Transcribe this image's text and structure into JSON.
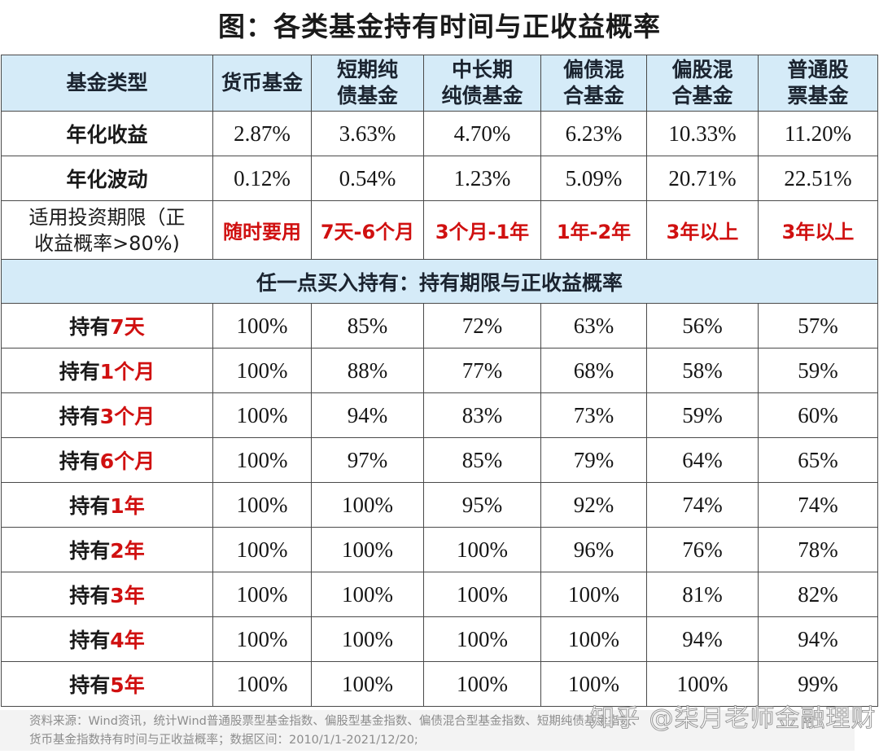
{
  "title": "图：各类基金持有时间与正收益概率",
  "header": {
    "first_col": "基金类型",
    "columns": [
      {
        "line1": "货币基金",
        "line2": ""
      },
      {
        "line1": "短期纯",
        "line2": "债基金"
      },
      {
        "line1": "中长期",
        "line2": "纯债基金"
      },
      {
        "line1": "偏债混",
        "line2": "合基金"
      },
      {
        "line1": "偏股混",
        "line2": "合基金"
      },
      {
        "line1": "普通股",
        "line2": "票基金"
      }
    ]
  },
  "metrics": [
    {
      "label": "年化收益",
      "values": [
        "2.87%",
        "3.63%",
        "4.70%",
        "6.23%",
        "10.33%",
        "11.20%"
      ]
    },
    {
      "label": "年化波动",
      "values": [
        "0.12%",
        "0.54%",
        "1.23%",
        "5.09%",
        "20.71%",
        "22.51%"
      ]
    }
  ],
  "horizon_row": {
    "label_line1": "适用投资期限（正",
    "label_line2": "收益概率>80%)",
    "values": [
      "随时要用",
      "7天-6个月",
      "3个月-1年",
      "1年-2年",
      "3年以上",
      "3年以上"
    ]
  },
  "section_title": "任一点买入持有：持有期限与正收益概率",
  "holding_rows": [
    {
      "prefix": "持有",
      "period": "7天",
      "values": [
        "100%",
        "85%",
        "72%",
        "63%",
        "56%",
        "57%"
      ]
    },
    {
      "prefix": "持有",
      "period": "1个月",
      "values": [
        "100%",
        "88%",
        "77%",
        "68%",
        "58%",
        "59%"
      ]
    },
    {
      "prefix": "持有",
      "period": "3个月",
      "values": [
        "100%",
        "94%",
        "83%",
        "73%",
        "59%",
        "60%"
      ]
    },
    {
      "prefix": "持有",
      "period": "6个月",
      "values": [
        "100%",
        "97%",
        "85%",
        "79%",
        "64%",
        "65%"
      ]
    },
    {
      "prefix": "持有",
      "period": "1年",
      "values": [
        "100%",
        "100%",
        "95%",
        "92%",
        "74%",
        "74%"
      ]
    },
    {
      "prefix": "持有",
      "period": "2年",
      "values": [
        "100%",
        "100%",
        "100%",
        "96%",
        "76%",
        "78%"
      ]
    },
    {
      "prefix": "持有",
      "period": "3年",
      "values": [
        "100%",
        "100%",
        "100%",
        "100%",
        "81%",
        "82%"
      ]
    },
    {
      "prefix": "持有",
      "period": "4年",
      "values": [
        "100%",
        "100%",
        "100%",
        "100%",
        "94%",
        "94%"
      ]
    },
    {
      "prefix": "持有",
      "period": "5年",
      "values": [
        "100%",
        "100%",
        "100%",
        "100%",
        "100%",
        "99%"
      ]
    }
  ],
  "footer": {
    "line1": "资料来源：Wind资讯，统计Wind普通股票型基金指数、偏股型基金指数、偏债混合型基金指数、短期纯债基金指数、",
    "line2": "货币基金指数持有时间与正收益概率；数据区间：2010/1/1-2021/12/20;"
  },
  "watermark": "知乎 @柒月老师金融理财",
  "colors": {
    "header_bg": "#d5ebf8",
    "highlight_red": "#d01010",
    "border": "#4a4a4a"
  }
}
